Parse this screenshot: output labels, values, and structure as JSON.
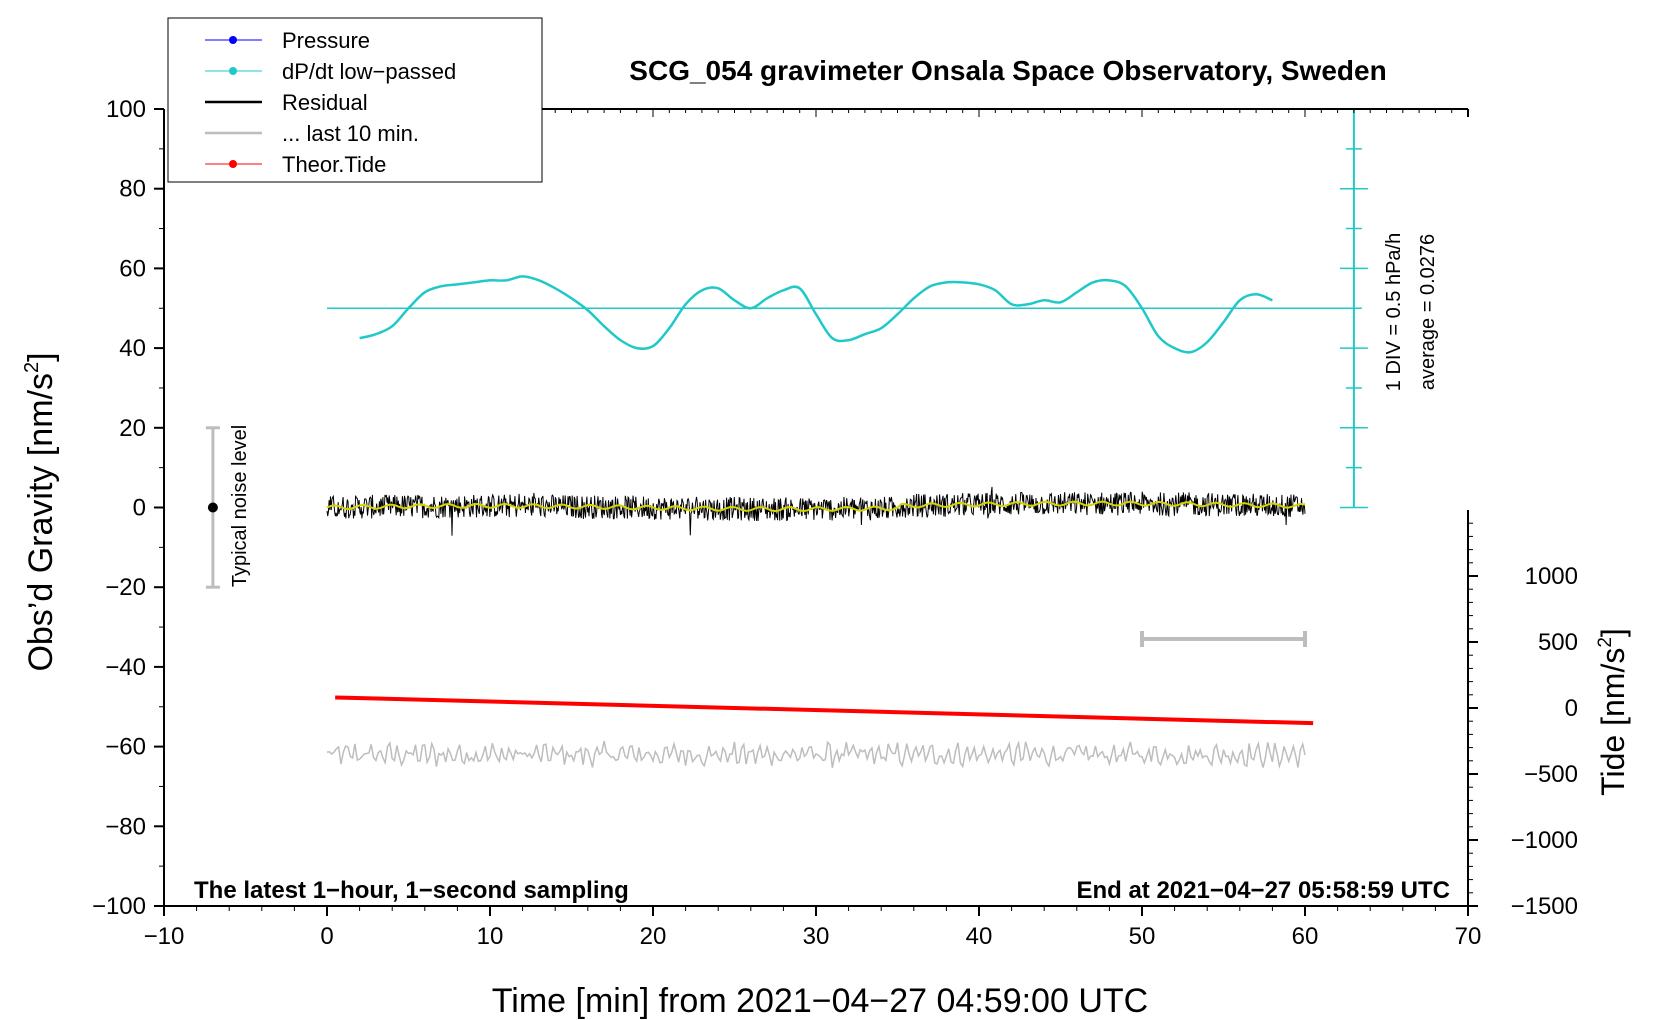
{
  "chart_data": {
    "type": "line",
    "title": "SCG_054 gravimeter Onsala Space Observatory, Sweden",
    "xlabel": "Time [min] from 2021−04−27 04:59:00 UTC",
    "ylabel_main": "Obs’d Gravity [nm/s",
    "ylabel_main_sup": "2",
    "ylabel_main_end": "]",
    "ylabel_right": "Tide [nm/s",
    "ylabel_right_sup": "2",
    "ylabel_right_end": "]",
    "xlim": [
      -10,
      70
    ],
    "ylim": [
      -100,
      100
    ],
    "tide_ylim": [
      -1500,
      1500
    ],
    "x_ticks": [
      "−10",
      "0",
      "10",
      "20",
      "30",
      "40",
      "50",
      "60",
      "70"
    ],
    "x_tick_values": [
      -10,
      0,
      10,
      20,
      30,
      40,
      50,
      60,
      70
    ],
    "y_ticks": [
      "100",
      "80",
      "60",
      "40",
      "20",
      "0",
      "−20",
      "−40",
      "−60",
      "−80",
      "−100"
    ],
    "y_tick_values": [
      100,
      80,
      60,
      40,
      20,
      0,
      -20,
      -40,
      -60,
      -80,
      -100
    ],
    "tide_ticks": [
      "1000",
      "500",
      "0",
      "−500",
      "−1000",
      "−1500"
    ],
    "tide_tick_values": [
      1000,
      500,
      0,
      -500,
      -1000,
      -1500
    ],
    "legend": {
      "position": "top-left",
      "entries": [
        {
          "label": "Pressure",
          "color": "#0000ff",
          "marker": true
        },
        {
          "label": "dP/dt low−passed",
          "color": "#20c8c8",
          "marker": true
        },
        {
          "label": "Residual",
          "color": "#000000",
          "marker": false
        },
        {
          "label": "... last 10 min.",
          "color": "#bdbdbd",
          "marker": false
        },
        {
          "label": "Theor.Tide",
          "color": "#ff0000",
          "marker": true
        }
      ]
    },
    "pressure_axis": {
      "label1": "1 DIV = 0.5 hPa/h",
      "label2": "average = 0.0276",
      "color": "#20c8c8",
      "x": 63,
      "y_range": [
        0,
        100
      ],
      "baseline": 50
    },
    "noise_bar": {
      "label": "Typical noise level",
      "x": -7,
      "y": 0,
      "low": -20,
      "high": 20
    },
    "last10_bar": {
      "x_start": 50,
      "x_end": 60,
      "y": -33
    },
    "series": [
      {
        "name": "dP/dt low-passed",
        "color": "#20c8c8",
        "x": [
          2,
          3,
          4,
          5,
          6,
          7,
          8,
          9,
          10,
          11,
          12,
          13,
          14,
          15,
          16,
          17,
          18,
          19,
          20,
          21,
          22,
          23,
          24,
          25,
          26,
          27,
          28,
          29,
          30,
          31,
          32,
          33,
          34,
          35,
          36,
          37,
          38,
          39,
          40,
          41,
          42,
          43,
          44,
          45,
          46,
          47,
          48,
          49,
          50,
          51,
          52,
          53,
          54,
          55,
          56,
          57,
          58
        ],
        "y": [
          42.5,
          43.5,
          45.5,
          50,
          54,
          55.5,
          56,
          56.5,
          57,
          57,
          58,
          57,
          55,
          52.5,
          49.5,
          45.5,
          42,
          40,
          40.5,
          45,
          51,
          54.5,
          55,
          52,
          50,
          52.5,
          54.5,
          55,
          48.5,
          42.5,
          42,
          43.5,
          45,
          48.5,
          52.5,
          55.5,
          56.5,
          56.5,
          56,
          54.5,
          51,
          51,
          52,
          51.5,
          54,
          56.5,
          57,
          55.5,
          50,
          43,
          40,
          39,
          41.5,
          46.5,
          52,
          53.5,
          52
        ]
      },
      {
        "name": "Theor.Tide",
        "color": "#ff0000",
        "x": [
          0.5,
          60.5
        ],
        "y": [
          80,
          -115
        ]
      },
      {
        "name": "Residual",
        "color": "#000000",
        "x_range": [
          0,
          60
        ],
        "mean": 0,
        "amplitude": 3
      },
      {
        "name": "... last 10 min.",
        "color": "#bdbdbd",
        "x_range": [
          0,
          60
        ],
        "mean": -62,
        "amplitude": 2.5
      }
    ],
    "annotations": {
      "bottom_left": "The latest 1−hour, 1−second sampling",
      "bottom_right": "End at 2021−04−27 05:58:59 UTC"
    }
  }
}
